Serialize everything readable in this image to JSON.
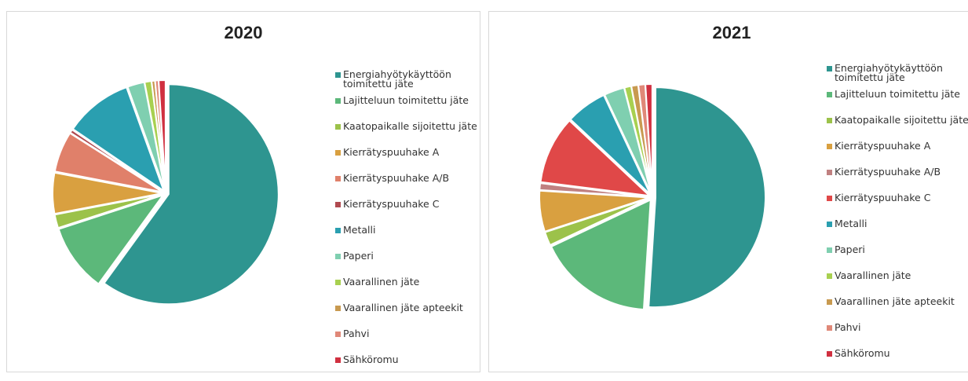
{
  "chart_data": [
    {
      "type": "pie",
      "title": "2020",
      "categories": [
        "Energiahyötykäyttöön toimitettu jäte",
        "Lajitteluun toimitettu jäte",
        "Kaatopaikalle sijoitettu jäte",
        "Kierrätyspuuhake A",
        "Kierrätyspuuhake A/B",
        "Kierrätyspuuhake C",
        "Metalli",
        "Paperi",
        "Vaarallinen jäte",
        "Vaarallinen jäte apteekit",
        "Pahvi",
        "Sähköromu"
      ],
      "values": [
        60,
        10,
        2,
        6,
        6,
        0.5,
        10,
        2.5,
        1,
        0.5,
        0.5,
        1
      ],
      "colors": [
        "#2e9590",
        "#5cb87a",
        "#9cc24a",
        "#d9a040",
        "#e0806a",
        "#b04a50",
        "#2a9fb0",
        "#7fcfb0",
        "#a8d050",
        "#c89a50",
        "#e08878",
        "#d03040"
      ]
    },
    {
      "type": "pie",
      "title": "2021",
      "categories": [
        "Energiahyötykäyttöön toimitettu jäte",
        "Lajitteluun toimitettu jäte",
        "Kaatopaikalle sijoitettu jäte",
        "Kierrätyspuuhake A",
        "Kierrätyspuuhake A/B",
        "Kierrätyspuuhake C",
        "Metalli",
        "Paperi",
        "Vaarallinen jäte",
        "Vaarallinen jäte apteekit",
        "Pahvi",
        "Sähköromu"
      ],
      "values": [
        51,
        17,
        2,
        6,
        1,
        10,
        6,
        3,
        1,
        1,
        1,
        1
      ],
      "colors": [
        "#2e9590",
        "#5cb87a",
        "#9cc24a",
        "#d9a040",
        "#c08080",
        "#e04848",
        "#2a9fb0",
        "#7fcfb0",
        "#a8d050",
        "#c89a50",
        "#e08878",
        "#d03040"
      ]
    }
  ]
}
